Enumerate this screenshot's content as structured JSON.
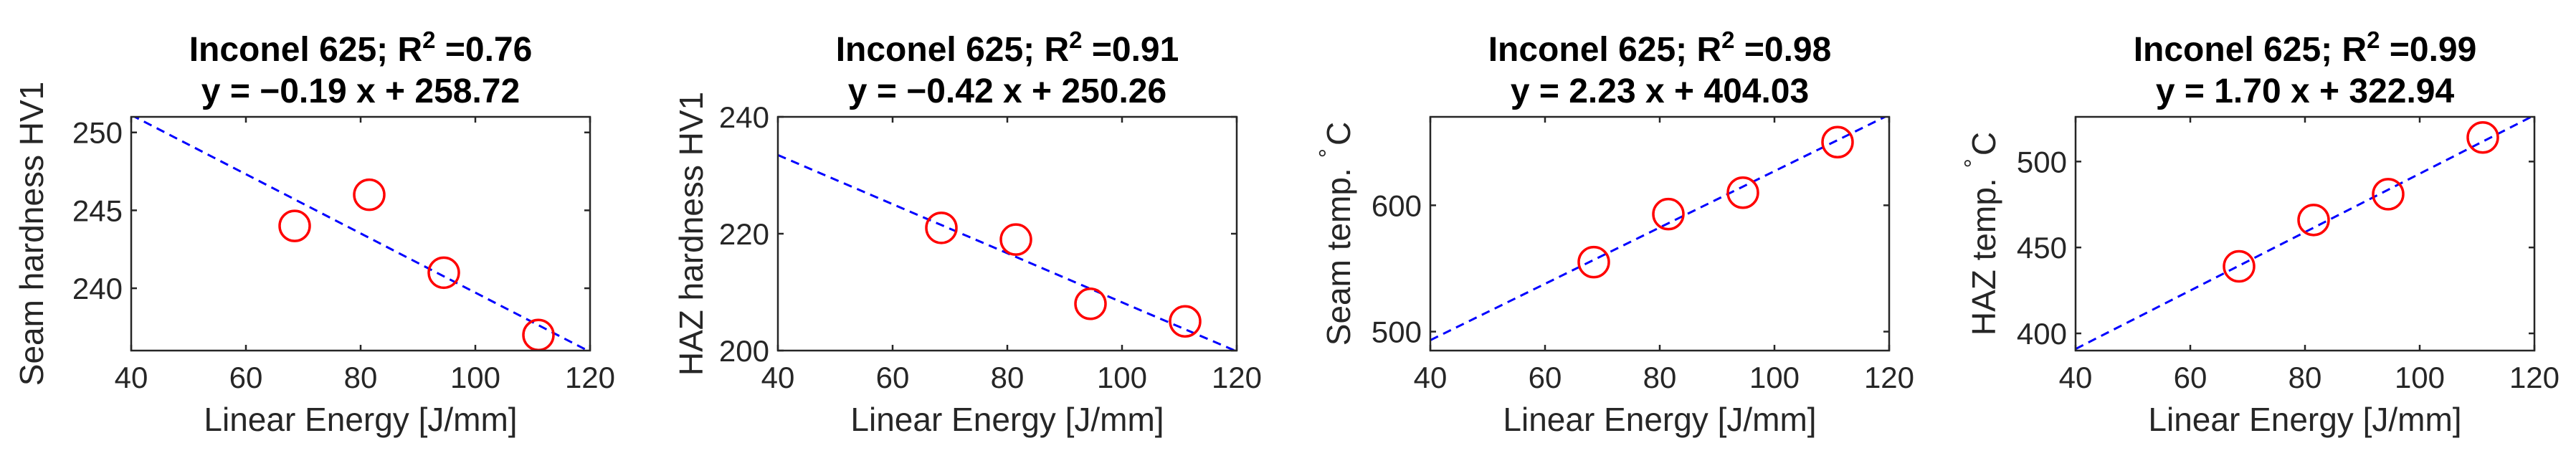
{
  "chart_data": [
    {
      "type": "scatter",
      "title_line1": "Inconel 625; R",
      "r2_label": "2",
      "r2_value": " =0.76",
      "equation": "y = −0.19 x + 258.72",
      "xlabel": "Linear Energy [J/mm]",
      "ylabel": "Seam hardness HV1",
      "xlim": [
        40,
        120
      ],
      "ylim": [
        236,
        251
      ],
      "xticks": [
        40,
        60,
        80,
        100,
        120
      ],
      "yticks": [
        240,
        245,
        250
      ],
      "x": [
        68.5,
        81.5,
        94.5,
        111
      ],
      "y": [
        244,
        246,
        241,
        237
      ],
      "fit": {
        "slope": -0.19,
        "intercept": 258.72
      }
    },
    {
      "type": "scatter",
      "title_line1": "Inconel 625; R",
      "r2_label": "2",
      "r2_value": " =0.91",
      "equation": "y = −0.42 x + 250.26",
      "xlabel": "Linear Energy [J/mm]",
      "ylabel": "HAZ hardness HV1",
      "xlim": [
        40,
        120
      ],
      "ylim": [
        200,
        240
      ],
      "xticks": [
        40,
        60,
        80,
        100,
        120
      ],
      "yticks": [
        200,
        220,
        240
      ],
      "x": [
        68.5,
        81.5,
        94.5,
        111
      ],
      "y": [
        221,
        219,
        208,
        205
      ],
      "fit": {
        "slope": -0.42,
        "intercept": 250.26
      }
    },
    {
      "type": "scatter",
      "title_line1": "Inconel 625; R",
      "r2_label": "2",
      "r2_value": " =0.98",
      "equation": "y = 2.23 x + 404.03",
      "xlabel": "Linear Energy [J/mm]",
      "ylabel": "Seam temp.",
      "ylabel_unit": "C",
      "ylabel_degree": "°",
      "xlim": [
        40,
        120
      ],
      "ylim": [
        485,
        670
      ],
      "xticks": [
        40,
        60,
        80,
        100,
        120
      ],
      "yticks": [
        500,
        600
      ],
      "x": [
        68.5,
        81.5,
        94.5,
        111
      ],
      "y": [
        555,
        593,
        610,
        650
      ],
      "fit": {
        "slope": 2.23,
        "intercept": 404.03
      }
    },
    {
      "type": "scatter",
      "title_line1": "Inconel 625; R",
      "r2_label": "2",
      "r2_value": " =0.99",
      "equation": "y = 1.70 x + 322.94",
      "xlabel": "Linear Energy [J/mm]",
      "ylabel": "HAZ temp.",
      "ylabel_unit": "C",
      "ylabel_degree": "°",
      "xlim": [
        40,
        120
      ],
      "ylim": [
        390,
        526
      ],
      "xticks": [
        40,
        60,
        80,
        100,
        120
      ],
      "yticks": [
        400,
        450,
        500
      ],
      "x": [
        68.5,
        81.5,
        94.5,
        111
      ],
      "y": [
        439,
        466,
        481,
        514
      ],
      "fit": {
        "slope": 1.7,
        "intercept": 322.94
      }
    }
  ]
}
